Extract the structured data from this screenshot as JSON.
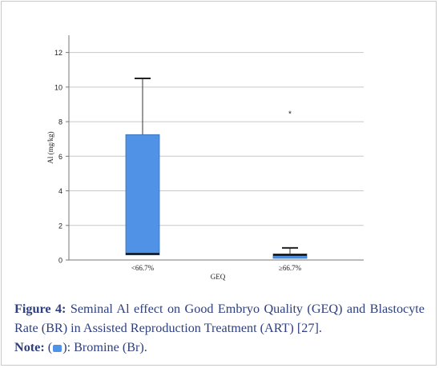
{
  "chart_data": {
    "type": "boxplot",
    "xlabel": "GEQ",
    "ylabel": "Al (mg/kg)",
    "ylim": [
      0,
      13
    ],
    "yticks": [
      0,
      2,
      4,
      6,
      8,
      10,
      12
    ],
    "grid": true,
    "box_color": "#4f92e6",
    "categories": [
      "<66.7%",
      "≥66.7%"
    ],
    "boxes": [
      {
        "category": "<66.7%",
        "whisker_low": 0.3,
        "q1": 0.3,
        "median": 0.35,
        "q3": 7.25,
        "whisker_high": 10.5,
        "outliers": []
      },
      {
        "category": "≥66.7%",
        "whisker_low": 0.1,
        "q1": 0.1,
        "median": 0.3,
        "q3": 0.35,
        "whisker_high": 0.7,
        "outliers": [
          8.5
        ]
      }
    ]
  },
  "caption": {
    "figure_label": "Figure 4:",
    "text": "Seminal Al effect on Good Embryo Quality (GEQ) and Blastocyte Rate (BR) in Assisted Reproduction Treatment (ART) [27].",
    "note_label": "Note:",
    "note_open": "(",
    "note_close": "): Bromine (Br)."
  }
}
